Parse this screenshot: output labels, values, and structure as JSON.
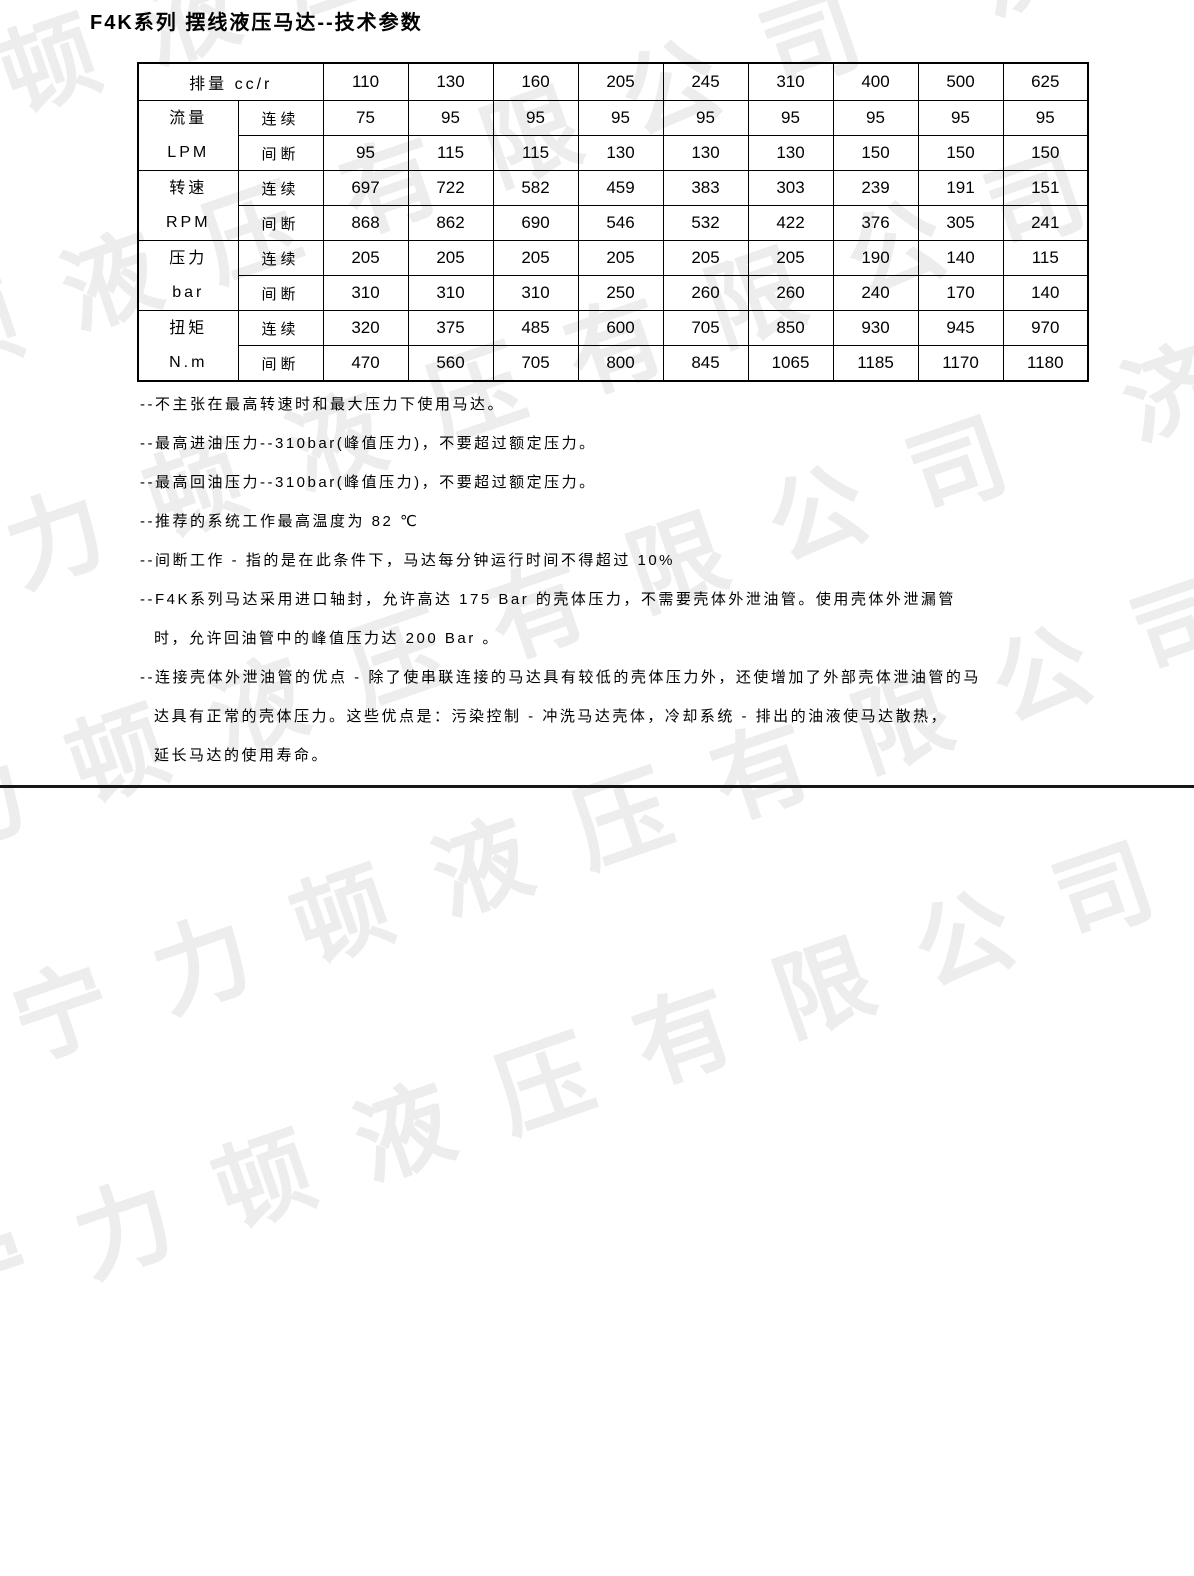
{
  "page": {
    "title": "F4K系列 摆线液压马达--技术参数",
    "watermark_text": "济宁力顿液压有限公司",
    "watermark_color": "#ededed",
    "text_color": "#000000"
  },
  "table": {
    "header": {
      "label": "排量 cc/r",
      "displacements": [
        "110",
        "130",
        "160",
        "205",
        "245",
        "310",
        "400",
        "500",
        "625"
      ]
    },
    "mode_labels": {
      "continuous": "连续",
      "intermittent": "间断"
    },
    "groups": [
      {
        "name": "流量",
        "unit": "LPM",
        "rows": [
          {
            "mode": "连续",
            "values": [
              "75",
              "95",
              "95",
              "95",
              "95",
              "95",
              "95",
              "95",
              "95"
            ]
          },
          {
            "mode": "间断",
            "values": [
              "95",
              "115",
              "115",
              "130",
              "130",
              "130",
              "150",
              "150",
              "150"
            ]
          }
        ]
      },
      {
        "name": "转速",
        "unit": "RPM",
        "rows": [
          {
            "mode": "连续",
            "values": [
              "697",
              "722",
              "582",
              "459",
              "383",
              "303",
              "239",
              "191",
              "151"
            ]
          },
          {
            "mode": "间断",
            "values": [
              "868",
              "862",
              "690",
              "546",
              "532",
              "422",
              "376",
              "305",
              "241"
            ]
          }
        ]
      },
      {
        "name": "压力",
        "unit": "bar",
        "rows": [
          {
            "mode": "连续",
            "values": [
              "205",
              "205",
              "205",
              "205",
              "205",
              "205",
              "190",
              "140",
              "115"
            ]
          },
          {
            "mode": "间断",
            "values": [
              "310",
              "310",
              "310",
              "250",
              "260",
              "260",
              "240",
              "170",
              "140"
            ]
          }
        ]
      },
      {
        "name": "扭矩",
        "unit": "N.m",
        "rows": [
          {
            "mode": "连续",
            "values": [
              "320",
              "375",
              "485",
              "600",
              "705",
              "850",
              "930",
              "945",
              "970"
            ]
          },
          {
            "mode": "间断",
            "values": [
              "470",
              "560",
              "705",
              "800",
              "845",
              "1065",
              "1185",
              "1170",
              "1180"
            ]
          }
        ]
      }
    ]
  },
  "notes": [
    {
      "text": "--不主张在最高转速时和最大压力下使用马达。",
      "indent": false,
      "gap_before": false
    },
    {
      "text": "--最高进油压力--310bar(峰值压力)，不要超过额定压力。",
      "indent": false,
      "gap_before": false
    },
    {
      "text": "--最高回油压力--310bar(峰值压力)，不要超过额定压力。",
      "indent": false,
      "gap_before": false
    },
    {
      "text": "--推荐的系统工作最高温度为 82 ℃",
      "indent": false,
      "gap_before": true
    },
    {
      "text": "--间断工作 - 指的是在此条件下，马达每分钟运行时间不得超过 10%",
      "indent": false,
      "gap_before": false
    },
    {
      "text": "--F4K系列马达采用进口轴封，允许高达 175 Bar 的壳体压力，不需要壳体外泄油管。使用壳体外泄漏管",
      "indent": false,
      "gap_before": false
    },
    {
      "text": "时，允许回油管中的峰值压力达 200 Bar 。",
      "indent": true,
      "gap_before": false
    },
    {
      "text": "--连接壳体外泄油管的优点 - 除了使串联连接的马达具有较低的壳体压力外，还使增加了外部壳体泄油管的马",
      "indent": false,
      "gap_before": false
    },
    {
      "text": "达具有正常的壳体压力。这些优点是：污染控制 - 冲洗马达壳体，冷却系统 - 排出的油液使马达散热，",
      "indent": true,
      "gap_before": false
    },
    {
      "text": "延长马达的使用寿命。",
      "indent": true,
      "gap_before": false
    }
  ]
}
